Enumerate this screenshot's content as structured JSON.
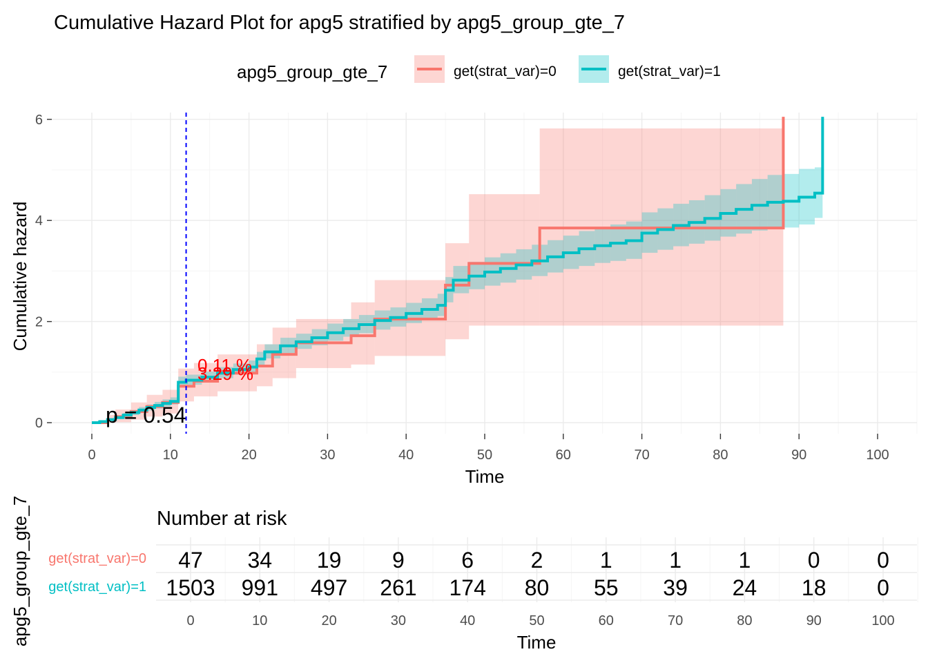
{
  "chart_data": [
    {
      "type": "step",
      "title": "Cumulative Hazard Plot for apg5 stratified by apg5_group_gte_7",
      "xlabel": "Time",
      "ylabel": "Cumulative hazard",
      "xlim": [
        -5,
        105
      ],
      "ylim": [
        -0.25,
        6.05
      ],
      "x_ticks": [
        0,
        10,
        20,
        30,
        40,
        50,
        60,
        70,
        80,
        90,
        100
      ],
      "y_ticks": [
        0,
        2,
        4,
        6
      ],
      "grid": true,
      "legend": {
        "title": "apg5_group_gte_7",
        "position": "top",
        "entries": [
          "get(strat_var)=0",
          "get(strat_var)=1"
        ]
      },
      "colors": {
        "stratum_0": "#F8766D",
        "stratum_1": "#00BFC4",
        "vline": "#0000FF",
        "annotation": "#FF0000"
      },
      "vline_x": 12,
      "pvalue_text": "p = 0.54",
      "annotations": [
        "0.11 %",
        "3.29 %"
      ],
      "series": [
        {
          "name": "get(strat_var)=0",
          "x": [
            0,
            2,
            3,
            5,
            7,
            9,
            11,
            13,
            16,
            21,
            23,
            26,
            33,
            36,
            45,
            48,
            57,
            88
          ],
          "y": [
            0,
            0.06,
            0.12,
            0.22,
            0.32,
            0.4,
            0.72,
            0.82,
            0.98,
            1.12,
            1.35,
            1.58,
            1.72,
            2.05,
            2.72,
            3.15,
            3.85,
            6.05
          ],
          "lower": [
            0,
            0,
            0.01,
            0.06,
            0.12,
            0.18,
            0.42,
            0.52,
            0.62,
            0.72,
            0.88,
            1.08,
            1.15,
            1.32,
            1.65,
            1.92,
            1.92,
            1.92
          ],
          "upper": [
            0,
            0.15,
            0.26,
            0.4,
            0.55,
            0.65,
            1.07,
            1.18,
            1.35,
            1.55,
            1.88,
            2.05,
            2.38,
            2.82,
            3.55,
            4.52,
            5.82,
            5.82
          ]
        },
        {
          "name": "get(strat_var)=1",
          "x": [
            0,
            1,
            2,
            3,
            4,
            5,
            6,
            7,
            8,
            9,
            10,
            11,
            12,
            14,
            16,
            18,
            20,
            21,
            22,
            24,
            26,
            28,
            30,
            32,
            34,
            36,
            38,
            40,
            42,
            44,
            45,
            46,
            48,
            50,
            52,
            54,
            56,
            58,
            60,
            62,
            64,
            66,
            68,
            70,
            72,
            74,
            76,
            78,
            80,
            82,
            84,
            86,
            88,
            90,
            92,
            93
          ],
          "y": [
            0,
            0.02,
            0.06,
            0.1,
            0.15,
            0.2,
            0.25,
            0.3,
            0.34,
            0.38,
            0.42,
            0.8,
            0.84,
            0.9,
            0.98,
            1.05,
            1.1,
            1.26,
            1.4,
            1.52,
            1.6,
            1.68,
            1.78,
            1.86,
            1.94,
            2.02,
            2.08,
            2.16,
            2.24,
            2.32,
            2.62,
            2.82,
            2.9,
            2.98,
            3.05,
            3.12,
            3.2,
            3.28,
            3.36,
            3.44,
            3.5,
            3.55,
            3.6,
            3.75,
            3.82,
            3.9,
            3.96,
            4.04,
            4.14,
            4.22,
            4.3,
            4.36,
            4.38,
            4.46,
            4.54,
            6.05
          ],
          "lower": [
            0,
            0,
            0.03,
            0.07,
            0.11,
            0.15,
            0.2,
            0.24,
            0.28,
            0.32,
            0.36,
            0.71,
            0.75,
            0.81,
            0.88,
            0.95,
            1.0,
            1.14,
            1.27,
            1.38,
            1.46,
            1.53,
            1.62,
            1.7,
            1.77,
            1.84,
            1.9,
            1.97,
            2.04,
            2.11,
            2.38,
            2.56,
            2.64,
            2.71,
            2.77,
            2.83,
            2.9,
            2.97,
            3.04,
            3.1,
            3.16,
            3.2,
            3.24,
            3.36,
            3.42,
            3.49,
            3.54,
            3.6,
            3.68,
            3.74,
            3.8,
            3.84,
            3.86,
            3.92,
            4.05,
            4.05
          ],
          "upper": [
            0,
            0.05,
            0.09,
            0.14,
            0.19,
            0.25,
            0.31,
            0.36,
            0.41,
            0.46,
            0.5,
            0.91,
            0.95,
            1.01,
            1.1,
            1.17,
            1.23,
            1.4,
            1.55,
            1.68,
            1.76,
            1.85,
            1.96,
            2.05,
            2.13,
            2.22,
            2.28,
            2.37,
            2.46,
            2.55,
            2.88,
            3.1,
            3.18,
            3.27,
            3.35,
            3.43,
            3.52,
            3.61,
            3.7,
            3.79,
            3.86,
            3.92,
            3.98,
            4.16,
            4.24,
            4.33,
            4.4,
            4.5,
            4.62,
            4.72,
            4.82,
            4.9,
            4.92,
            5.02,
            5.05,
            5.05
          ]
        }
      ]
    },
    {
      "type": "table",
      "title": "Number at risk",
      "xlabel": "Time",
      "ylabel": "apg5_group_gte_7",
      "x_ticks": [
        0,
        10,
        20,
        30,
        40,
        50,
        60,
        70,
        80,
        90,
        100
      ],
      "rows": [
        {
          "label": "get(strat_var)=0",
          "values": [
            47,
            34,
            19,
            9,
            6,
            2,
            1,
            1,
            1,
            0,
            0
          ]
        },
        {
          "label": "get(strat_var)=1",
          "values": [
            1503,
            991,
            497,
            261,
            174,
            80,
            55,
            39,
            24,
            18,
            0
          ]
        }
      ]
    }
  ]
}
